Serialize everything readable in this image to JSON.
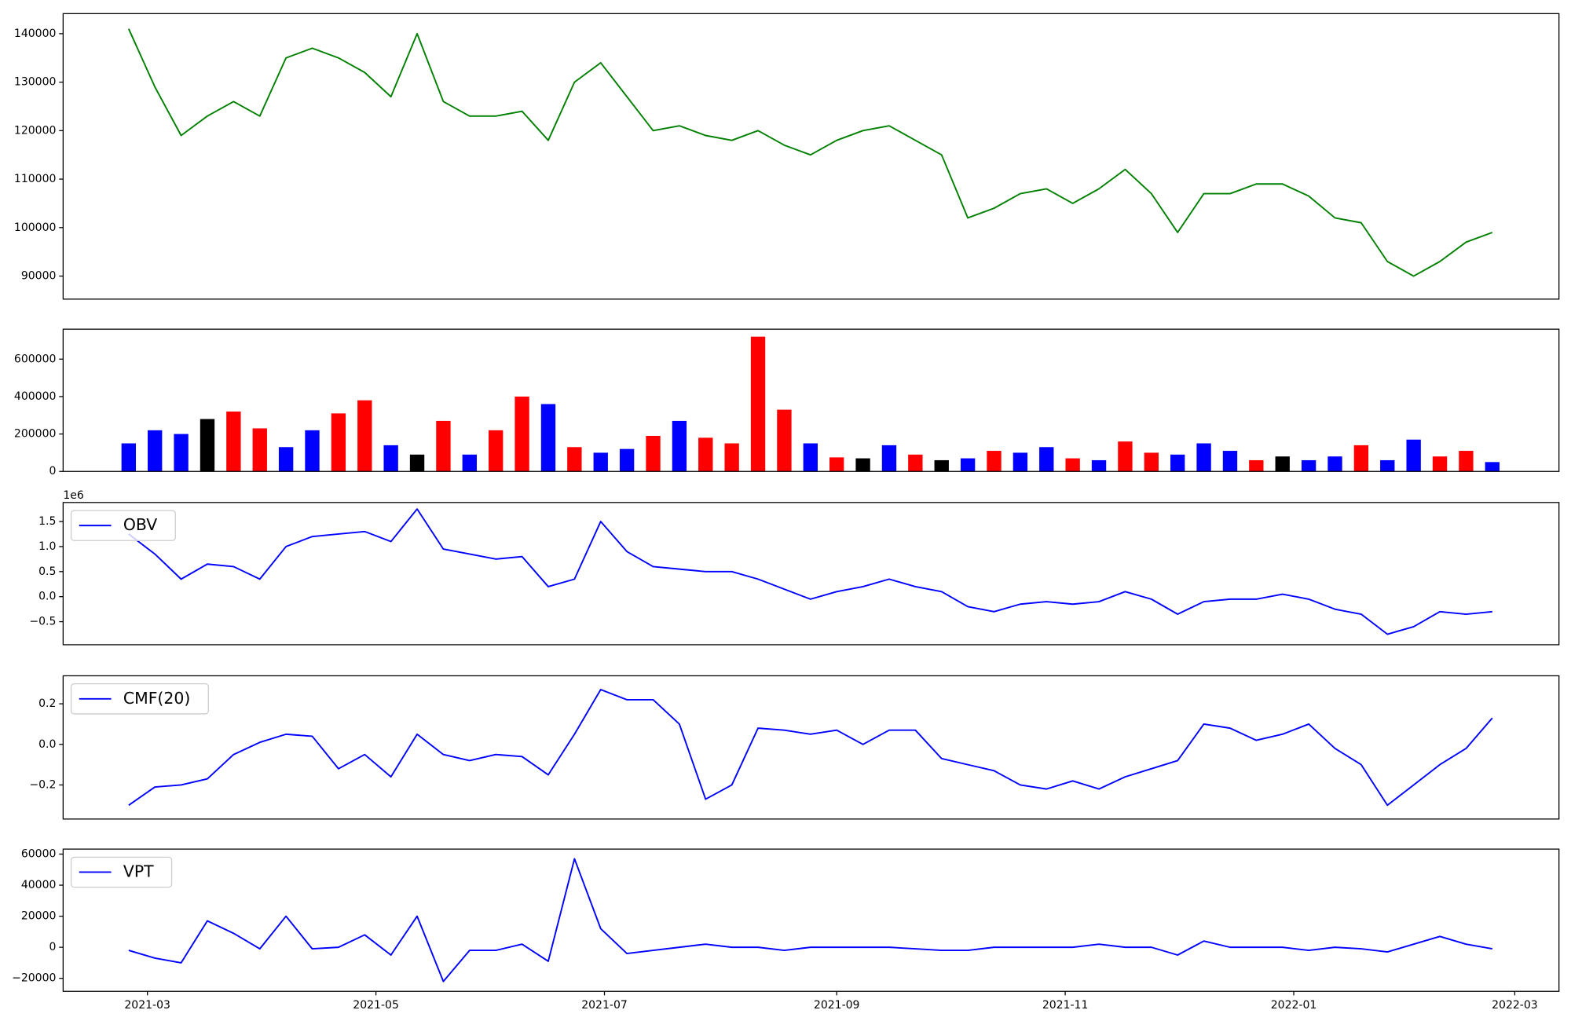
{
  "chart_data": [
    {
      "type": "line",
      "xlim": [
        18664.5,
        19063.8
      ],
      "ylim": [
        85248,
        144132
      ],
      "yticks": [
        90000,
        100000,
        110000,
        120000,
        130000,
        140000
      ],
      "x": [
        18682,
        18689,
        18696,
        18703,
        18710,
        18717,
        18724,
        18731,
        18738,
        18745,
        18752,
        18759,
        18766,
        18773,
        18780,
        18787,
        18794,
        18801,
        18808,
        18815,
        18822,
        18829,
        18836,
        18843,
        18850,
        18857,
        18864,
        18871,
        18878,
        18885,
        18892,
        18899,
        18906,
        18913,
        18920,
        18927,
        18934,
        18941,
        18948,
        18955,
        18962,
        18969,
        18976,
        18983,
        18990,
        18997,
        19004,
        19011,
        19018,
        19025,
        19032,
        19039,
        19046
      ],
      "series": [
        {
          "color": "#008000",
          "values": [
            141000,
            129000,
            119000,
            123000,
            126000,
            123000,
            135000,
            137000,
            135000,
            132000,
            127000,
            140000,
            126000,
            123000,
            123000,
            124000,
            118000,
            130000,
            134000,
            127000,
            120000,
            121000,
            119000,
            118000,
            120000,
            117000,
            115000,
            118000,
            120000,
            121000,
            118000,
            115000,
            102000,
            104000,
            107000,
            108000,
            105000,
            108000,
            112000,
            107000,
            99000,
            107000,
            107000,
            109000,
            109000,
            106500,
            102000,
            101000,
            93000,
            90000,
            93000,
            97000,
            99000
          ]
        }
      ]
    },
    {
      "type": "bar",
      "xlim": [
        18664.5,
        19063.8
      ],
      "ylim": [
        0,
        760000
      ],
      "yticks": [
        0,
        200000,
        400000,
        600000
      ],
      "x": [
        18682,
        18689,
        18696,
        18703,
        18710,
        18717,
        18724,
        18731,
        18738,
        18745,
        18752,
        18759,
        18766,
        18773,
        18780,
        18787,
        18794,
        18801,
        18808,
        18815,
        18822,
        18829,
        18836,
        18843,
        18850,
        18857,
        18864,
        18871,
        18878,
        18885,
        18892,
        18899,
        18906,
        18913,
        18920,
        18927,
        18934,
        18941,
        18948,
        18955,
        18962,
        18969,
        18976,
        18983,
        18990,
        18997,
        19004,
        19011,
        19018,
        19025,
        19032,
        19039,
        19046
      ],
      "values": [
        150000,
        220000,
        200000,
        280000,
        320000,
        230000,
        130000,
        220000,
        310000,
        380000,
        140000,
        90000,
        270000,
        90000,
        220000,
        400000,
        360000,
        130000,
        100000,
        120000,
        190000,
        270000,
        180000,
        150000,
        720000,
        330000,
        150000,
        75000,
        70000,
        140000,
        90000,
        60000,
        70000,
        110000,
        100000,
        130000,
        70000,
        60000,
        160000,
        100000,
        90000,
        150000,
        110000,
        60000,
        80000,
        60000,
        80000,
        140000,
        60000,
        170000,
        80000,
        110000,
        50000
      ],
      "colors": [
        "#0000ff",
        "#0000ff",
        "#0000ff",
        "#000000",
        "#ff0000",
        "#ff0000",
        "#0000ff",
        "#0000ff",
        "#ff0000",
        "#ff0000",
        "#0000ff",
        "#000000",
        "#ff0000",
        "#0000ff",
        "#ff0000",
        "#ff0000",
        "#0000ff",
        "#ff0000",
        "#0000ff",
        "#0000ff",
        "#ff0000",
        "#0000ff",
        "#ff0000",
        "#ff0000",
        "#ff0000",
        "#ff0000",
        "#0000ff",
        "#ff0000",
        "#000000",
        "#0000ff",
        "#ff0000",
        "#000000",
        "#0000ff",
        "#ff0000",
        "#0000ff",
        "#0000ff",
        "#ff0000",
        "#0000ff",
        "#ff0000",
        "#ff0000",
        "#0000ff",
        "#0000ff",
        "#0000ff",
        "#ff0000",
        "#000000",
        "#0000ff",
        "#0000ff",
        "#ff0000",
        "#0000ff",
        "#0000ff",
        "#ff0000",
        "#ff0000",
        "#0000ff"
      ]
    },
    {
      "type": "line",
      "xlim": [
        18664.5,
        19063.8
      ],
      "ylim": [
        -0.96,
        1.88
      ],
      "offset_label": "1e6",
      "legend": "upper left",
      "yticks": [
        {
          "value": -0.5,
          "label": "−0.5"
        },
        {
          "value": 0,
          "label": "0.0"
        },
        0.5,
        {
          "value": 1,
          "label": "1.0"
        },
        1.5
      ],
      "x": [
        18682,
        18689,
        18696,
        18703,
        18710,
        18717,
        18724,
        18731,
        18738,
        18745,
        18752,
        18759,
        18766,
        18773,
        18780,
        18787,
        18794,
        18801,
        18808,
        18815,
        18822,
        18829,
        18836,
        18843,
        18850,
        18857,
        18864,
        18871,
        18878,
        18885,
        18892,
        18899,
        18906,
        18913,
        18920,
        18927,
        18934,
        18941,
        18948,
        18955,
        18962,
        18969,
        18976,
        18983,
        18990,
        18997,
        19004,
        19011,
        19018,
        19025,
        19032,
        19039,
        19046
      ],
      "series": [
        {
          "name": "OBV",
          "color": "#0000ff",
          "values": [
            1.25,
            0.85,
            0.35,
            0.65,
            0.6,
            0.35,
            1.0,
            1.2,
            1.25,
            1.3,
            1.1,
            1.75,
            0.95,
            0.85,
            0.75,
            0.8,
            0.2,
            0.35,
            1.5,
            0.9,
            0.6,
            0.55,
            0.5,
            0.5,
            0.35,
            0.15,
            -0.05,
            0.1,
            0.2,
            0.35,
            0.2,
            0.1,
            -0.2,
            -0.3,
            -0.15,
            -0.1,
            -0.15,
            -0.1,
            0.1,
            -0.05,
            -0.35,
            -0.1,
            -0.05,
            -0.05,
            0.05,
            -0.05,
            -0.25,
            -0.35,
            -0.75,
            -0.6,
            -0.3,
            -0.35,
            -0.3
          ]
        }
      ]
    },
    {
      "type": "line",
      "xlim": [
        18664.5,
        19063.8
      ],
      "ylim": [
        -0.368,
        0.338
      ],
      "legend": "upper left",
      "yticks": [
        {
          "value": -0.2,
          "label": "−0.2"
        },
        {
          "value": 0,
          "label": "0.0"
        },
        0.2
      ],
      "x": [
        18682,
        18689,
        18696,
        18703,
        18710,
        18717,
        18724,
        18731,
        18738,
        18745,
        18752,
        18759,
        18766,
        18773,
        18780,
        18787,
        18794,
        18801,
        18808,
        18815,
        18822,
        18829,
        18836,
        18843,
        18850,
        18857,
        18864,
        18871,
        18878,
        18885,
        18892,
        18899,
        18906,
        18913,
        18920,
        18927,
        18934,
        18941,
        18948,
        18955,
        18962,
        18969,
        18976,
        18983,
        18990,
        18997,
        19004,
        19011,
        19018,
        19025,
        19032,
        19039,
        19046
      ],
      "series": [
        {
          "name": "CMF(20)",
          "color": "#0000ff",
          "values": [
            -0.3,
            -0.21,
            -0.2,
            -0.17,
            -0.05,
            0.01,
            0.05,
            0.04,
            -0.12,
            -0.05,
            -0.16,
            0.05,
            -0.05,
            -0.08,
            -0.05,
            -0.06,
            -0.15,
            0.05,
            0.27,
            0.22,
            0.22,
            0.1,
            -0.27,
            -0.2,
            0.08,
            0.07,
            0.05,
            0.07,
            0.0,
            0.07,
            0.07,
            -0.07,
            -0.1,
            -0.13,
            -0.2,
            -0.22,
            -0.18,
            -0.22,
            -0.16,
            -0.12,
            -0.08,
            0.1,
            0.08,
            0.02,
            0.05,
            0.1,
            -0.02,
            -0.1,
            -0.3,
            -0.2,
            -0.1,
            -0.02,
            0.13
          ]
        }
      ]
    },
    {
      "type": "line",
      "xlim": [
        18664.5,
        19063.8
      ],
      "ylim": [
        -28387,
        63226
      ],
      "legend": "upper left",
      "yticks": [
        {
          "value": -20000,
          "label": "−20000"
        },
        0,
        20000,
        40000,
        60000
      ],
      "xticks": [
        {
          "value": 18687,
          "label": "2021-03"
        },
        {
          "value": 18748,
          "label": "2021-05"
        },
        {
          "value": 18809,
          "label": "2021-07"
        },
        {
          "value": 18871,
          "label": "2021-09"
        },
        {
          "value": 18932,
          "label": "2021-11"
        },
        {
          "value": 18993,
          "label": "2022-01"
        },
        {
          "value": 19052,
          "label": "2022-03"
        }
      ],
      "x": [
        18682,
        18689,
        18696,
        18703,
        18710,
        18717,
        18724,
        18731,
        18738,
        18745,
        18752,
        18759,
        18766,
        18773,
        18780,
        18787,
        18794,
        18801,
        18808,
        18815,
        18822,
        18829,
        18836,
        18843,
        18850,
        18857,
        18864,
        18871,
        18878,
        18885,
        18892,
        18899,
        18906,
        18913,
        18920,
        18927,
        18934,
        18941,
        18948,
        18955,
        18962,
        18969,
        18976,
        18983,
        18990,
        18997,
        19004,
        19011,
        19018,
        19025,
        19032,
        19039,
        19046
      ],
      "series": [
        {
          "name": "VPT",
          "color": "#0000ff",
          "values": [
            -2000,
            -7000,
            -10000,
            17000,
            9000,
            -1000,
            20000,
            -1000,
            0,
            8000,
            -5000,
            20000,
            -22000,
            -2000,
            -2000,
            2000,
            -9000,
            57000,
            12000,
            -4000,
            -2000,
            0,
            2000,
            0,
            0,
            -2000,
            0,
            0,
            0,
            0,
            -1000,
            -2000,
            -2000,
            0,
            0,
            0,
            0,
            2000,
            0,
            0,
            -5000,
            4000,
            0,
            0,
            0,
            -2000,
            0,
            -1000,
            -3000,
            2000,
            7000,
            2000,
            -1000
          ]
        }
      ]
    }
  ]
}
